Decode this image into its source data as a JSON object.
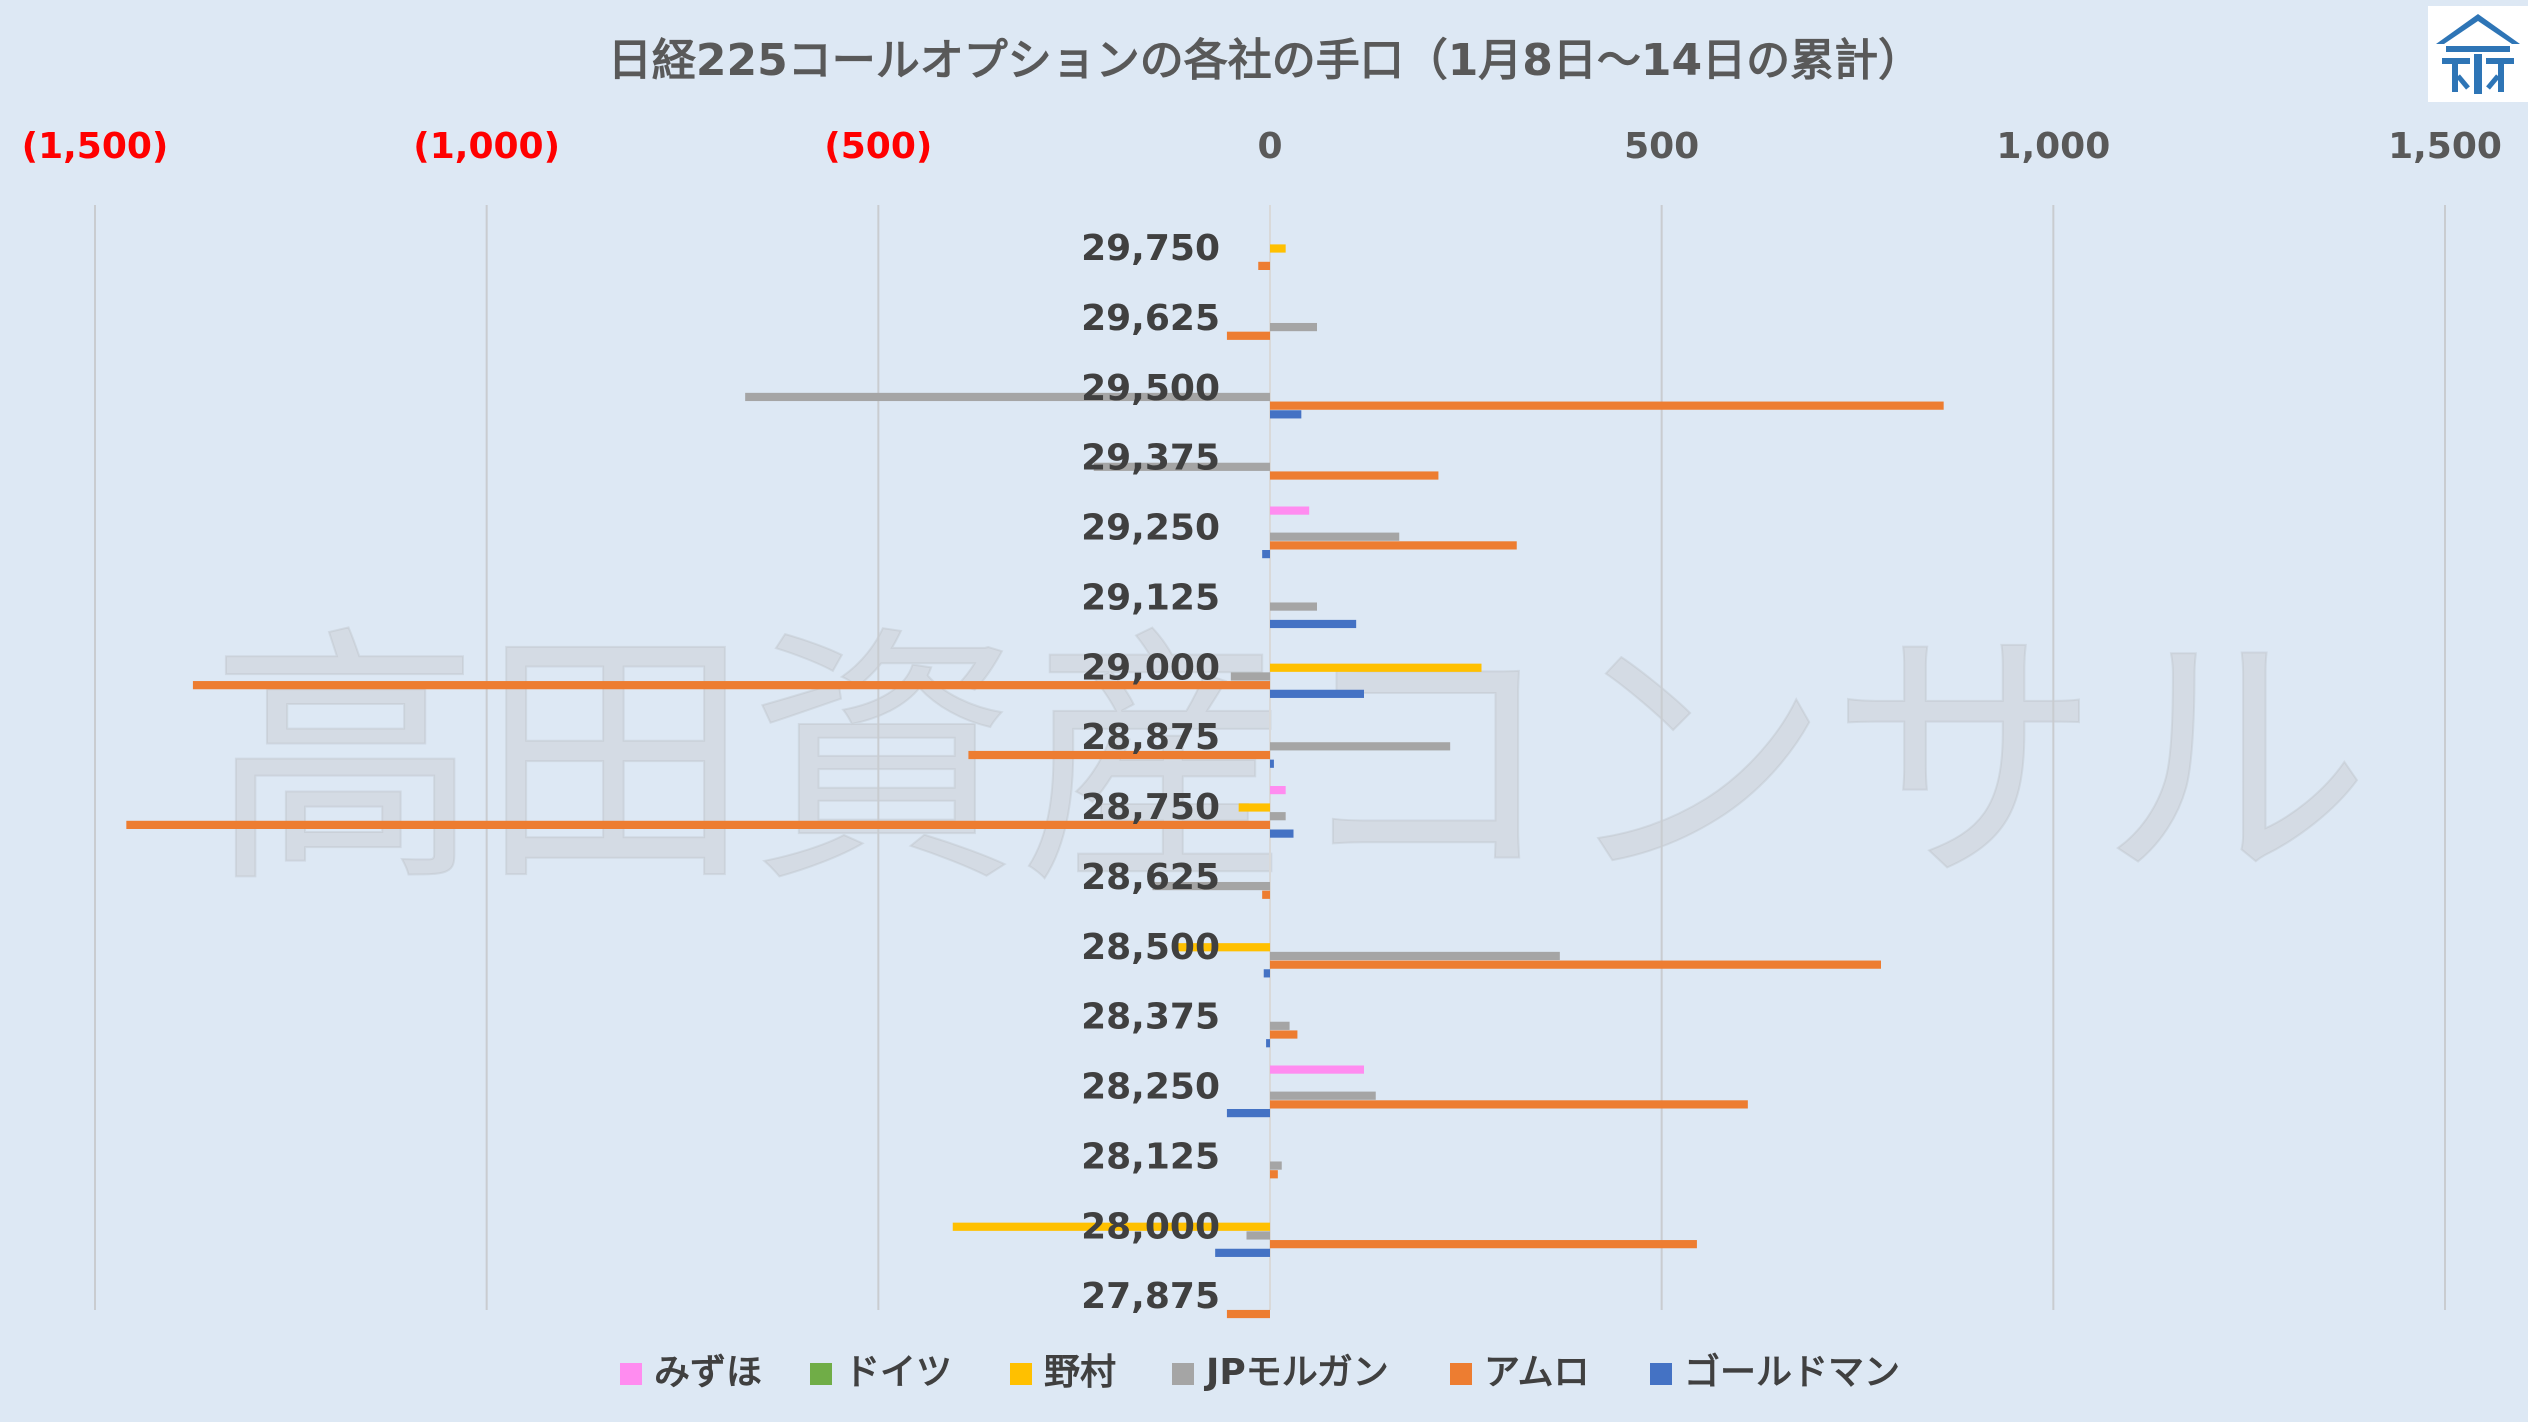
{
  "watermark": "高田資産コンサル",
  "chart_data": {
    "type": "bar",
    "orientation": "horizontal",
    "title": "日経225コールオプションの各社の手口（1月8日～14日の累計）",
    "xlim": [
      -1500,
      1500
    ],
    "x_ticks": [
      {
        "value": -1500,
        "label": "(1,500)",
        "color": "#ff0000"
      },
      {
        "value": -1000,
        "label": "(1,000)",
        "color": "#ff0000"
      },
      {
        "value": -500,
        "label": "(500)",
        "color": "#ff0000"
      },
      {
        "value": 0,
        "label": "0",
        "color": "#595959"
      },
      {
        "value": 500,
        "label": "500",
        "color": "#595959"
      },
      {
        "value": 1000,
        "label": "1,000",
        "color": "#595959"
      },
      {
        "value": 1500,
        "label": "1,500",
        "color": "#595959"
      }
    ],
    "x_axis_position": "top",
    "grid": "vertical",
    "legend_position": "bottom",
    "categories": [
      "29,750",
      "29,625",
      "29,500",
      "29,375",
      "29,250",
      "29,125",
      "29,000",
      "28,875",
      "28,750",
      "28,625",
      "28,500",
      "28,375",
      "28,250",
      "28,125",
      "28,000",
      "27,875"
    ],
    "series": [
      {
        "name": "みずほ",
        "color": "#ff8cf0",
        "values": [
          0,
          0,
          0,
          0,
          50,
          0,
          0,
          0,
          20,
          0,
          0,
          0,
          120,
          0,
          0,
          0
        ]
      },
      {
        "name": "ドイツ",
        "color": "#70ad47",
        "values": [
          0,
          0,
          0,
          0,
          0,
          0,
          0,
          0,
          0,
          0,
          0,
          0,
          0,
          0,
          0,
          0
        ]
      },
      {
        "name": "野村",
        "color": "#ffc000",
        "values": [
          20,
          0,
          0,
          0,
          0,
          0,
          270,
          0,
          -40,
          0,
          -120,
          0,
          0,
          0,
          -405,
          0
        ]
      },
      {
        "name": "JPモルガン",
        "color": "#a5a5a5",
        "values": [
          0,
          60,
          -670,
          -225,
          165,
          60,
          -50,
          230,
          20,
          -150,
          370,
          25,
          135,
          15,
          -30,
          0
        ]
      },
      {
        "name": "アムロ",
        "color": "#ed7d31",
        "values": [
          -15,
          -55,
          860,
          215,
          315,
          0,
          -1375,
          -385,
          -1460,
          -10,
          780,
          35,
          610,
          10,
          545,
          -55
        ]
      },
      {
        "name": "ゴールドマン",
        "color": "#4472c4",
        "values": [
          0,
          0,
          40,
          0,
          -10,
          110,
          120,
          5,
          30,
          0,
          -8,
          -5,
          -55,
          0,
          -70,
          0
        ]
      }
    ]
  }
}
